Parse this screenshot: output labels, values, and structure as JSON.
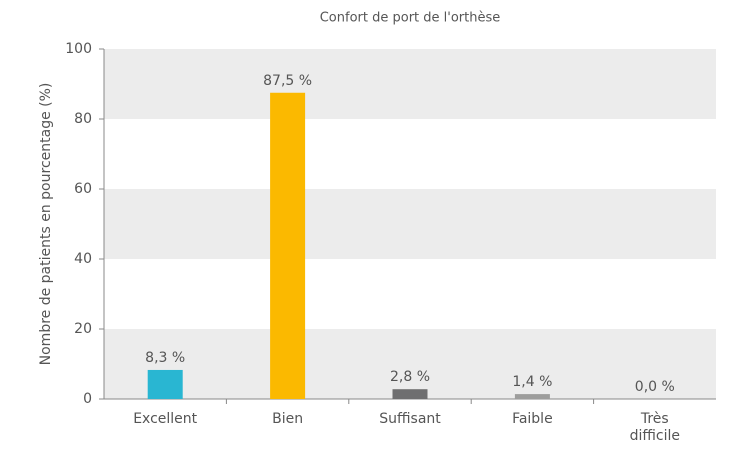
{
  "chart_data": {
    "type": "bar",
    "title": "Confort de port de l'orthèse",
    "y_label": "Nombre de patients en pourcentage (%)",
    "categories": [
      "Excellent",
      "Bien",
      "Suffisant",
      "Faible",
      "Très difficile"
    ],
    "values": [
      8.3,
      87.5,
      2.8,
      1.4,
      0.0
    ],
    "value_labels": [
      "8,3 %",
      "87,5 %",
      "2,8 %",
      "1,4 %",
      "0,0 %"
    ],
    "colors": [
      "#29b6d2",
      "#fbb900",
      "#6f6f70",
      "#9d9d9c",
      "#cccccc"
    ],
    "ylim": [
      0,
      100
    ],
    "yticks": [
      0,
      20,
      40,
      60,
      80,
      100
    ],
    "grid": "bands"
  }
}
